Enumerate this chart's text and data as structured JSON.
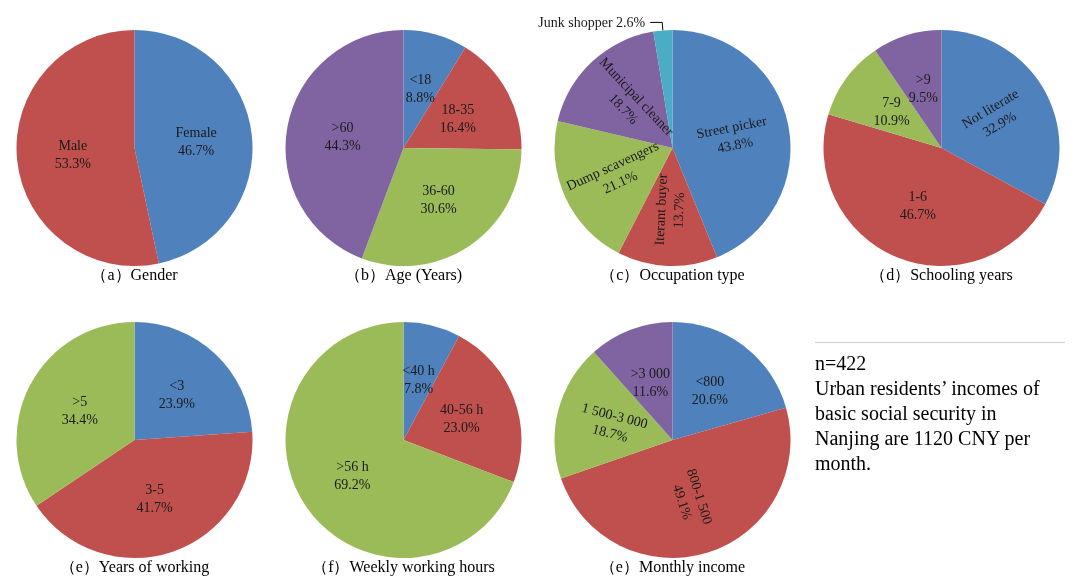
{
  "chart_data": [
    {
      "type": "pie",
      "title": "（a）Gender",
      "categories": [
        "Female",
        "Male"
      ],
      "values": [
        46.7,
        53.3
      ],
      "value_labels": [
        "46.7%",
        "53.3%"
      ],
      "colors": [
        "#4f81bd",
        "#c0504d"
      ]
    },
    {
      "type": "pie",
      "title": "（b）Age (Years)",
      "categories": [
        "<18",
        "18-35",
        "36-60",
        ">60"
      ],
      "values": [
        8.8,
        16.4,
        30.6,
        44.3
      ],
      "value_labels": [
        "8.8%",
        "16.4%",
        "30.6%",
        "44.3%"
      ],
      "colors": [
        "#4f81bd",
        "#c0504d",
        "#9bbb59",
        "#8064a2"
      ]
    },
    {
      "type": "pie",
      "title": "（c）Occupation type",
      "categories": [
        "Street picker",
        "Iterant buyer",
        "Dump scavengers",
        "Municipal cleaner",
        "Junk shopper"
      ],
      "values": [
        43.8,
        13.7,
        21.1,
        18.7,
        2.6
      ],
      "value_labels": [
        "43.8%",
        "13.7%",
        "21.1%",
        "18.7%",
        "2.6%"
      ],
      "colors": [
        "#4f81bd",
        "#c0504d",
        "#9bbb59",
        "#8064a2",
        "#4bacc6"
      ]
    },
    {
      "type": "pie",
      "title": "（d）Schooling years",
      "categories": [
        "Not literate",
        "1-6",
        "7-9",
        ">9"
      ],
      "values": [
        32.9,
        46.7,
        10.9,
        9.5
      ],
      "value_labels": [
        "32.9%",
        "46.7%",
        "10.9%",
        "9.5%"
      ],
      "colors": [
        "#4f81bd",
        "#c0504d",
        "#9bbb59",
        "#8064a2"
      ]
    },
    {
      "type": "pie",
      "title": "（e）Years of working",
      "categories": [
        "<3",
        "3-5",
        ">5"
      ],
      "values": [
        23.9,
        41.7,
        34.4
      ],
      "value_labels": [
        "23.9%",
        "41.7%",
        "34.4%"
      ],
      "colors": [
        "#4f81bd",
        "#c0504d",
        "#9bbb59"
      ]
    },
    {
      "type": "pie",
      "title": "（f）Weekly working hours",
      "categories": [
        "<40 h",
        "40-56 h",
        ">56 h"
      ],
      "values": [
        7.8,
        23.0,
        69.2
      ],
      "value_labels": [
        "7.8%",
        "23.0%",
        "69.2%"
      ],
      "colors": [
        "#4f81bd",
        "#c0504d",
        "#9bbb59"
      ]
    },
    {
      "type": "pie",
      "title": "（e）Monthly income",
      "categories": [
        "<800",
        "800-1 500",
        "1 500-3 000",
        ">3 000"
      ],
      "values": [
        20.6,
        49.1,
        18.7,
        11.6
      ],
      "value_labels": [
        "20.6%",
        "49.1%",
        "18.7%",
        "11.6%"
      ],
      "colors": [
        "#4f81bd",
        "#c0504d",
        "#9bbb59",
        "#8064a2"
      ]
    },
    {
      "type": "other",
      "annotations": [
        "n=422",
        "Urban residents’ incomes of basic social security in Nanjing are 1120 CNY per month."
      ]
    }
  ]
}
